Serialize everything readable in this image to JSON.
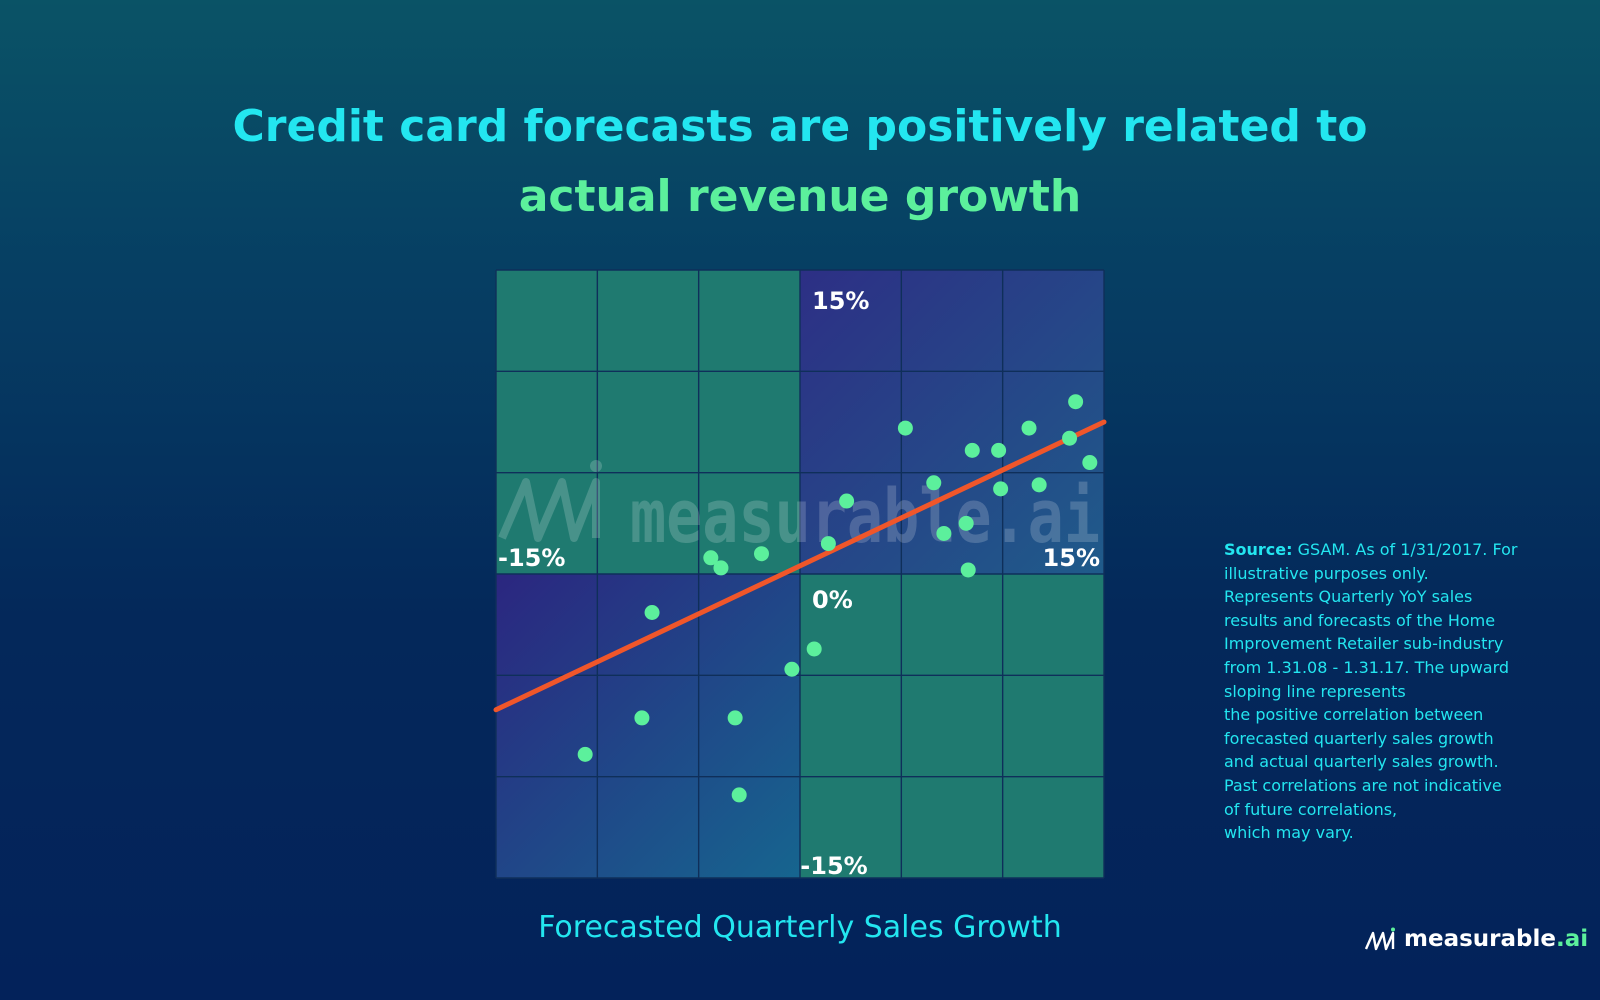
{
  "header": {
    "title_line1": "Credit card forecasts are positively related to",
    "title_line2": "actual revenue growth"
  },
  "colors": {
    "title_primary": "#23e6f0",
    "title_accent": "#5cf09c",
    "points": "#5cf09c",
    "trend_line": "#f0562a",
    "quadrant_positive": "#2d2f85",
    "quadrant_negative": "#1f7a70"
  },
  "chart_data": {
    "type": "scatter",
    "title": "Credit card forecasts are positively related to actual revenue growth",
    "xlabel": "Forecasted Quarterly Sales Growth",
    "ylabel": "",
    "xlim": [
      -15,
      15
    ],
    "ylim": [
      -15,
      15
    ],
    "grid": true,
    "axis_labels": {
      "x_min": "-15%",
      "x_max": "15%",
      "y_max": "15%",
      "y_min": "-15%",
      "origin": "0%"
    },
    "points": [
      {
        "x": 5.2,
        "y": 7.2
      },
      {
        "x": 13.6,
        "y": 8.5
      },
      {
        "x": 11.3,
        "y": 7.2
      },
      {
        "x": 13.3,
        "y": 6.7
      },
      {
        "x": 8.5,
        "y": 6.1
      },
      {
        "x": 9.8,
        "y": 6.1
      },
      {
        "x": 14.3,
        "y": 5.5
      },
      {
        "x": 6.6,
        "y": 4.5
      },
      {
        "x": 9.9,
        "y": 4.2
      },
      {
        "x": 11.8,
        "y": 4.4
      },
      {
        "x": 2.3,
        "y": 3.6
      },
      {
        "x": 8.2,
        "y": 2.5
      },
      {
        "x": 7.1,
        "y": 2.0
      },
      {
        "x": 1.4,
        "y": 1.5
      },
      {
        "x": -1.9,
        "y": 1.0
      },
      {
        "x": -4.4,
        "y": 0.8
      },
      {
        "x": -3.9,
        "y": 0.3
      },
      {
        "x": 8.3,
        "y": 0.2
      },
      {
        "x": -7.3,
        "y": -1.9
      },
      {
        "x": 0.7,
        "y": -3.7
      },
      {
        "x": -0.4,
        "y": -4.7
      },
      {
        "x": -7.8,
        "y": -7.1
      },
      {
        "x": -3.2,
        "y": -7.1
      },
      {
        "x": -10.6,
        "y": -8.9
      },
      {
        "x": -3.0,
        "y": -10.9
      }
    ],
    "trend_line": {
      "x": [
        -15,
        15
      ],
      "y": [
        -6.7,
        7.5
      ]
    },
    "watermark": "measurable.ai"
  },
  "footnote": {
    "lead": "Source:",
    "first_line": " GSAM. As of 1/31/2017. For",
    "lines": [
      "illustrative purposes only.",
      "Represents Quarterly YoY sales",
      "results and forecasts of the Home",
      "Improvement Retailer sub-industry",
      "from 1.31.08 - 1.31.17. The upward",
      "sloping line represents",
      "the positive correlation between",
      "forecasted quarterly sales growth",
      "and actual quarterly sales growth.",
      "Past correlations are not indicative",
      "of future correlations,",
      "which may vary."
    ]
  },
  "brand": {
    "name": "measurable",
    "suffix": ".ai",
    "icon": "measurable-logo-icon"
  }
}
